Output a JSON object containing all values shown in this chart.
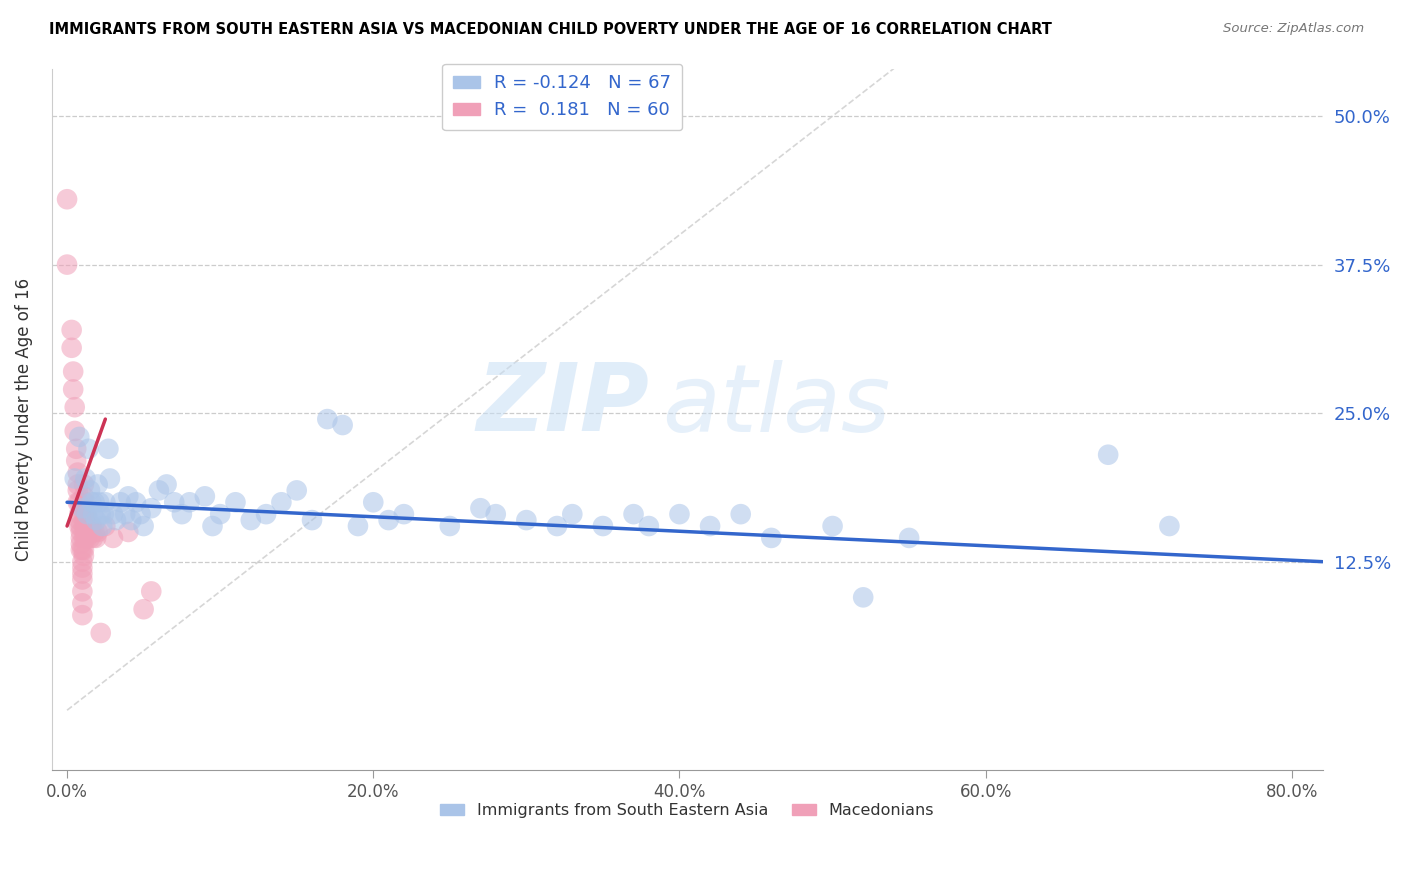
{
  "title": "IMMIGRANTS FROM SOUTH EASTERN ASIA VS MACEDONIAN CHILD POVERTY UNDER THE AGE OF 16 CORRELATION CHART",
  "source": "Source: ZipAtlas.com",
  "ylabel": "Child Poverty Under the Age of 16",
  "xlabel_ticks": [
    "0.0%",
    "20.0%",
    "40.0%",
    "60.0%",
    "80.0%"
  ],
  "xlabel_tick_vals": [
    0.0,
    0.2,
    0.4,
    0.6,
    0.8
  ],
  "ylabel_ticks": [
    "12.5%",
    "25.0%",
    "37.5%",
    "50.0%"
  ],
  "ylabel_tick_vals": [
    0.125,
    0.25,
    0.375,
    0.5
  ],
  "xlim": [
    -0.01,
    0.82
  ],
  "ylim": [
    -0.05,
    0.54
  ],
  "ymax_gridline": 0.5,
  "legend1_label": "Immigrants from South Eastern Asia",
  "legend2_label": "Macedonians",
  "R1": -0.124,
  "N1": 67,
  "R2": 0.181,
  "N2": 60,
  "watermark_zip": "ZIP",
  "watermark_atlas": "atlas",
  "blue_color": "#aac4e8",
  "pink_color": "#f0a0b8",
  "blue_line_color": "#3366cc",
  "pink_line_color": "#cc3355",
  "blue_scatter": [
    [
      0.005,
      0.195
    ],
    [
      0.008,
      0.23
    ],
    [
      0.01,
      0.17
    ],
    [
      0.012,
      0.195
    ],
    [
      0.013,
      0.165
    ],
    [
      0.014,
      0.22
    ],
    [
      0.015,
      0.185
    ],
    [
      0.016,
      0.175
    ],
    [
      0.017,
      0.165
    ],
    [
      0.018,
      0.175
    ],
    [
      0.019,
      0.16
    ],
    [
      0.02,
      0.19
    ],
    [
      0.021,
      0.175
    ],
    [
      0.022,
      0.165
    ],
    [
      0.023,
      0.155
    ],
    [
      0.024,
      0.165
    ],
    [
      0.025,
      0.175
    ],
    [
      0.027,
      0.22
    ],
    [
      0.028,
      0.195
    ],
    [
      0.03,
      0.165
    ],
    [
      0.032,
      0.16
    ],
    [
      0.035,
      0.175
    ],
    [
      0.038,
      0.165
    ],
    [
      0.04,
      0.18
    ],
    [
      0.042,
      0.16
    ],
    [
      0.045,
      0.175
    ],
    [
      0.048,
      0.165
    ],
    [
      0.05,
      0.155
    ],
    [
      0.055,
      0.17
    ],
    [
      0.06,
      0.185
    ],
    [
      0.065,
      0.19
    ],
    [
      0.07,
      0.175
    ],
    [
      0.075,
      0.165
    ],
    [
      0.08,
      0.175
    ],
    [
      0.09,
      0.18
    ],
    [
      0.095,
      0.155
    ],
    [
      0.1,
      0.165
    ],
    [
      0.11,
      0.175
    ],
    [
      0.12,
      0.16
    ],
    [
      0.13,
      0.165
    ],
    [
      0.14,
      0.175
    ],
    [
      0.15,
      0.185
    ],
    [
      0.16,
      0.16
    ],
    [
      0.17,
      0.245
    ],
    [
      0.18,
      0.24
    ],
    [
      0.19,
      0.155
    ],
    [
      0.2,
      0.175
    ],
    [
      0.21,
      0.16
    ],
    [
      0.22,
      0.165
    ],
    [
      0.25,
      0.155
    ],
    [
      0.27,
      0.17
    ],
    [
      0.28,
      0.165
    ],
    [
      0.3,
      0.16
    ],
    [
      0.32,
      0.155
    ],
    [
      0.33,
      0.165
    ],
    [
      0.35,
      0.155
    ],
    [
      0.37,
      0.165
    ],
    [
      0.38,
      0.155
    ],
    [
      0.4,
      0.165
    ],
    [
      0.42,
      0.155
    ],
    [
      0.44,
      0.165
    ],
    [
      0.46,
      0.145
    ],
    [
      0.5,
      0.155
    ],
    [
      0.52,
      0.095
    ],
    [
      0.55,
      0.145
    ],
    [
      0.68,
      0.215
    ],
    [
      0.72,
      0.155
    ]
  ],
  "pink_scatter": [
    [
      0.0,
      0.43
    ],
    [
      0.0,
      0.375
    ],
    [
      0.003,
      0.32
    ],
    [
      0.003,
      0.305
    ],
    [
      0.004,
      0.285
    ],
    [
      0.004,
      0.27
    ],
    [
      0.005,
      0.255
    ],
    [
      0.005,
      0.235
    ],
    [
      0.006,
      0.22
    ],
    [
      0.006,
      0.21
    ],
    [
      0.007,
      0.2
    ],
    [
      0.007,
      0.19
    ],
    [
      0.007,
      0.185
    ],
    [
      0.007,
      0.175
    ],
    [
      0.008,
      0.175
    ],
    [
      0.008,
      0.165
    ],
    [
      0.008,
      0.16
    ],
    [
      0.008,
      0.155
    ],
    [
      0.009,
      0.155
    ],
    [
      0.009,
      0.15
    ],
    [
      0.009,
      0.145
    ],
    [
      0.009,
      0.14
    ],
    [
      0.009,
      0.135
    ],
    [
      0.01,
      0.135
    ],
    [
      0.01,
      0.125
    ],
    [
      0.01,
      0.12
    ],
    [
      0.01,
      0.115
    ],
    [
      0.01,
      0.11
    ],
    [
      0.01,
      0.1
    ],
    [
      0.01,
      0.09
    ],
    [
      0.01,
      0.08
    ],
    [
      0.011,
      0.19
    ],
    [
      0.011,
      0.18
    ],
    [
      0.011,
      0.165
    ],
    [
      0.011,
      0.155
    ],
    [
      0.011,
      0.145
    ],
    [
      0.011,
      0.135
    ],
    [
      0.011,
      0.13
    ],
    [
      0.012,
      0.175
    ],
    [
      0.012,
      0.165
    ],
    [
      0.012,
      0.155
    ],
    [
      0.012,
      0.145
    ],
    [
      0.013,
      0.165
    ],
    [
      0.013,
      0.155
    ],
    [
      0.013,
      0.145
    ],
    [
      0.014,
      0.16
    ],
    [
      0.014,
      0.155
    ],
    [
      0.015,
      0.155
    ],
    [
      0.015,
      0.145
    ],
    [
      0.016,
      0.155
    ],
    [
      0.017,
      0.145
    ],
    [
      0.018,
      0.15
    ],
    [
      0.019,
      0.145
    ],
    [
      0.02,
      0.15
    ],
    [
      0.022,
      0.065
    ],
    [
      0.025,
      0.155
    ],
    [
      0.03,
      0.145
    ],
    [
      0.04,
      0.15
    ],
    [
      0.05,
      0.085
    ],
    [
      0.055,
      0.1
    ]
  ],
  "blue_line_x": [
    0.0,
    0.82
  ],
  "blue_line_y": [
    0.175,
    0.125
  ],
  "pink_line_x": [
    0.0,
    0.025
  ],
  "pink_line_y": [
    0.155,
    0.245
  ],
  "diag_line_x": [
    0.0,
    0.54
  ],
  "diag_line_y": [
    0.0,
    0.54
  ]
}
